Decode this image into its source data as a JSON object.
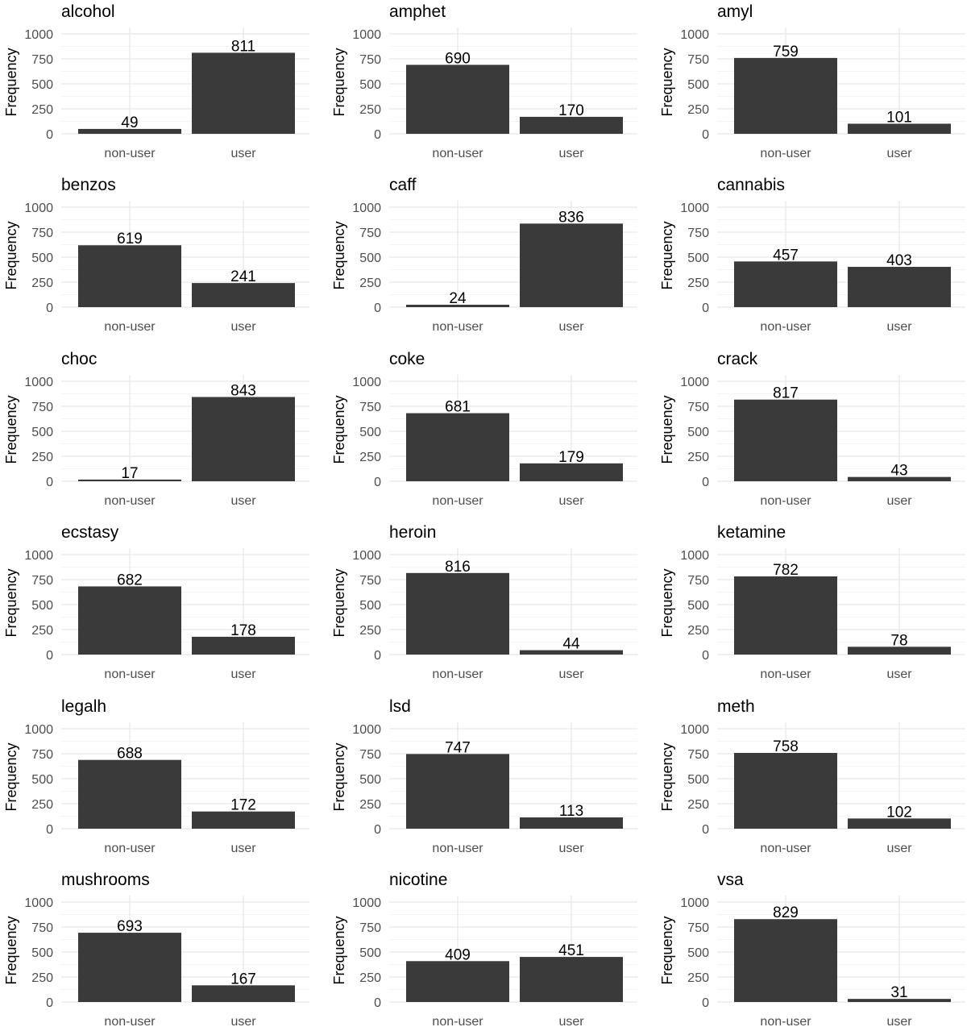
{
  "chart_data": {
    "type": "bar",
    "ylabel": "Frequency",
    "categories": [
      "non-user",
      "user"
    ],
    "yticks": [
      0,
      250,
      500,
      750,
      1000
    ],
    "ylim": [
      0,
      1000
    ],
    "bar_color": "#3a3a3a",
    "panels": [
      {
        "title": "alcohol",
        "values": [
          49,
          811
        ]
      },
      {
        "title": "amphet",
        "values": [
          690,
          170
        ]
      },
      {
        "title": "amyl",
        "values": [
          759,
          101
        ]
      },
      {
        "title": "benzos",
        "values": [
          619,
          241
        ]
      },
      {
        "title": "caff",
        "values": [
          24,
          836
        ]
      },
      {
        "title": "cannabis",
        "values": [
          457,
          403
        ]
      },
      {
        "title": "choc",
        "values": [
          17,
          843
        ]
      },
      {
        "title": "coke",
        "values": [
          681,
          179
        ]
      },
      {
        "title": "crack",
        "values": [
          817,
          43
        ]
      },
      {
        "title": "ecstasy",
        "values": [
          682,
          178
        ]
      },
      {
        "title": "heroin",
        "values": [
          816,
          44
        ]
      },
      {
        "title": "ketamine",
        "values": [
          782,
          78
        ]
      },
      {
        "title": "legalh",
        "values": [
          688,
          172
        ]
      },
      {
        "title": "lsd",
        "values": [
          747,
          113
        ]
      },
      {
        "title": "meth",
        "values": [
          758,
          102
        ]
      },
      {
        "title": "mushrooms",
        "values": [
          693,
          167
        ]
      },
      {
        "title": "nicotine",
        "values": [
          409,
          451
        ]
      },
      {
        "title": "vsa",
        "values": [
          829,
          31
        ]
      }
    ]
  }
}
